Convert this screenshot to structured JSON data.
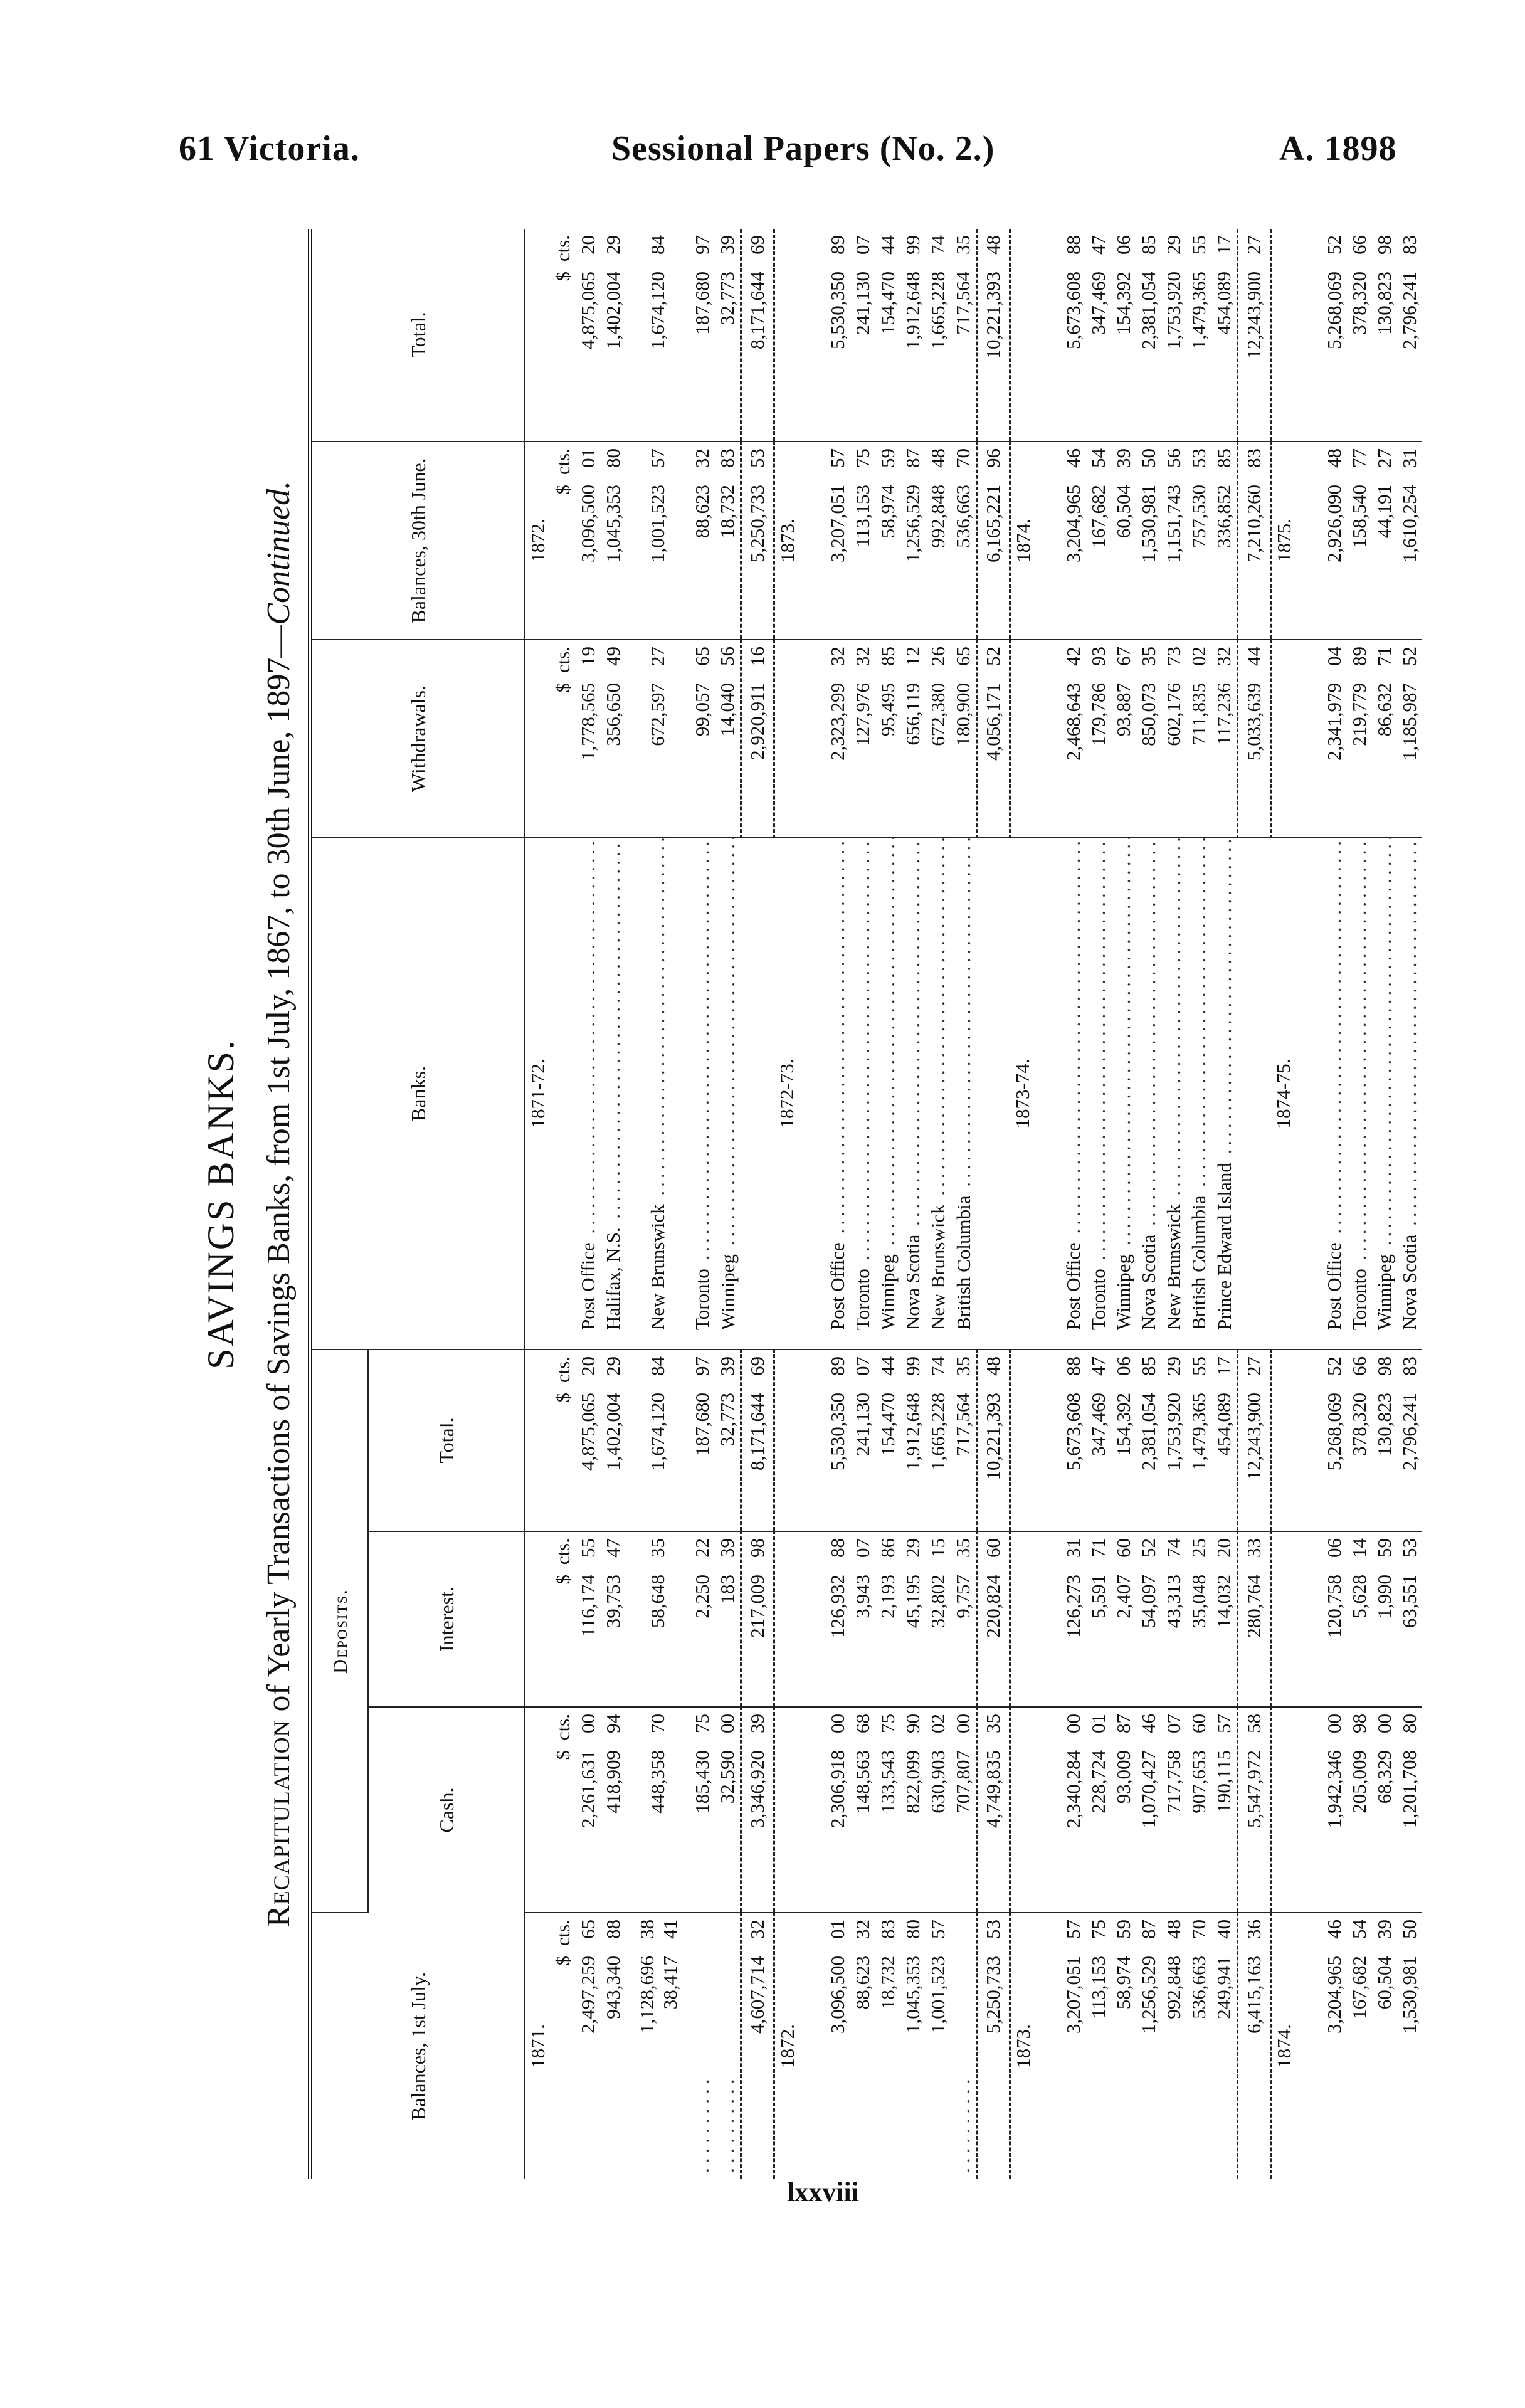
{
  "header": {
    "left": "61 Victoria.",
    "center": "Sessional Papers (No. 2.)",
    "right": "A. 1898"
  },
  "page_number": "lxxviii",
  "title": "SAVINGS BANKS.",
  "subtitle": {
    "lead": "Recapitulation",
    "rest": " of Yearly Transactions of Savings Banks, from 1st July, 1867, to 30th June, 1897—",
    "continued": "Continued."
  },
  "columns": {
    "balance_1st_july": "Balances, 1st July.",
    "deposits": "Deposits.",
    "cash": "Cash.",
    "interest": "Interest.",
    "deposits_total": "Total.",
    "banks": "Banks.",
    "withdrawals": "Withdrawals.",
    "balance_30th_june": "Balances, 30th June.",
    "total": "Total."
  },
  "units": {
    "dollars": "$",
    "cents": "cts."
  },
  "periods": [
    {
      "period": "1871-72.",
      "year_start": "1871.",
      "year_end": "1872.",
      "show_units": true,
      "rows": [
        {
          "bank": "Post Office",
          "balance_1st_july": [
            "2,497,259 65"
          ],
          "cash": "2,261,631 00",
          "interest": "116,174 55",
          "deposits_total": "4,875,065 20",
          "withdrawals": "1,778,565 19",
          "balance_30th_june": "3,096,500 01",
          "total": "4,875,065 20"
        },
        {
          "bank": "Halifax, N.S.",
          "balance_1st_july": [
            "943,340 88"
          ],
          "cash": "418,909 94",
          "interest": "39,753 47",
          "deposits_total": "1,402,004 29",
          "withdrawals": "356,650 49",
          "balance_30th_june": "1,045,353 80",
          "total": "1,402,004 29"
        },
        {
          "bank": "New Brunswick",
          "balance_1st_july": [
            "1,128,696 38",
            "38,417 41"
          ],
          "cash": "448,358 70",
          "interest": "58,648 35",
          "deposits_total": "1,674,120 84",
          "withdrawals": "672,597 27",
          "balance_30th_june": "1,001,523 57",
          "total": "1,674,120 84"
        },
        {
          "bank": "Toronto",
          "balance_1st_july": [],
          "cash": "185,430 75",
          "interest": "2,250 22",
          "deposits_total": "187,680 97",
          "withdrawals": "99,057 65",
          "balance_30th_june": "88,623 32",
          "total": "187,680 97"
        },
        {
          "bank": "Winnipeg",
          "balance_1st_july": [],
          "cash": "32,590 00",
          "interest": "183 39",
          "deposits_total": "32,773 39",
          "withdrawals": "14,040 56",
          "balance_30th_june": "18,732 83",
          "total": "32,773 39"
        }
      ],
      "totals": {
        "balance_1st_july": "4,607,714 32",
        "cash": "3,346,920 39",
        "interest": "217,009 98",
        "deposits_total": "8,171,644 69",
        "withdrawals": "2,920,911 16",
        "balance_30th_june": "5,250,733 53",
        "total": "8,171,644 69"
      }
    },
    {
      "period": "1872-73.",
      "year_start": "1872.",
      "year_end": "1873.",
      "show_units": false,
      "rows": [
        {
          "bank": "Post Office",
          "balance_1st_july": [
            "3,096,500 01"
          ],
          "cash": "2,306,918 00",
          "interest": "126,932 88",
          "deposits_total": "5,530,350 89",
          "withdrawals": "2,323,299 32",
          "balance_30th_june": "3,207,051 57",
          "total": "5,530,350 89"
        },
        {
          "bank": "Toronto",
          "balance_1st_july": [
            "88,623 32"
          ],
          "cash": "148,563 68",
          "interest": "3,943 07",
          "deposits_total": "241,130 07",
          "withdrawals": "127,976 32",
          "balance_30th_june": "113,153 75",
          "total": "241,130 07"
        },
        {
          "bank": "Winnipeg",
          "balance_1st_july": [
            "18,732 83"
          ],
          "cash": "133,543 75",
          "interest": "2,193 86",
          "deposits_total": "154,470 44",
          "withdrawals": "95,495 85",
          "balance_30th_june": "58,974 59",
          "total": "154,470 44"
        },
        {
          "bank": "Nova Scotia",
          "balance_1st_july": [
            "1,045,353 80"
          ],
          "cash": "822,099 90",
          "interest": "45,195 29",
          "deposits_total": "1,912,648 99",
          "withdrawals": "656,119 12",
          "balance_30th_june": "1,256,529 87",
          "total": "1,912,648 99"
        },
        {
          "bank": "New Brunswick",
          "balance_1st_july": [
            "1,001,523 57"
          ],
          "cash": "630,903 02",
          "interest": "32,802 15",
          "deposits_total": "1,665,228 74",
          "withdrawals": "672,380 26",
          "balance_30th_june": "992,848 48",
          "total": "1,665,228 74"
        },
        {
          "bank": "British Columbia",
          "balance_1st_july": [],
          "cash": "707,807 00",
          "interest": "9,757 35",
          "deposits_total": "717,564 35",
          "withdrawals": "180,900 65",
          "balance_30th_june": "536,663 70",
          "total": "717,564 35"
        }
      ],
      "totals": {
        "balance_1st_july": "5,250,733 53",
        "cash": "4,749,835 35",
        "interest": "220,824 60",
        "deposits_total": "10,221,393 48",
        "withdrawals": "4,056,171 52",
        "balance_30th_june": "6,165,221 96",
        "total": "10,221,393 48"
      }
    },
    {
      "period": "1873-74.",
      "year_start": "1873.",
      "year_end": "1874.",
      "show_units": false,
      "rows": [
        {
          "bank": "Post Office",
          "balance_1st_july": [
            "3,207,051 57"
          ],
          "cash": "2,340,284 00",
          "interest": "126,273 31",
          "deposits_total": "5,673,608 88",
          "withdrawals": "2,468,643 42",
          "balance_30th_june": "3,204,965 46",
          "total": "5,673,608 88"
        },
        {
          "bank": "Toronto",
          "balance_1st_july": [
            "113,153 75"
          ],
          "cash": "228,724 01",
          "interest": "5,591 71",
          "deposits_total": "347,469 47",
          "withdrawals": "179,786 93",
          "balance_30th_june": "167,682 54",
          "total": "347,469 47"
        },
        {
          "bank": "Winnipeg",
          "balance_1st_july": [
            "58,974 59"
          ],
          "cash": "93,009 87",
          "interest": "2,407 60",
          "deposits_total": "154,392 06",
          "withdrawals": "93,887 67",
          "balance_30th_june": "60,504 39",
          "total": "154,392 06"
        },
        {
          "bank": "Nova Scotia",
          "balance_1st_july": [
            "1,256,529 87"
          ],
          "cash": "1,070,427 46",
          "interest": "54,097 52",
          "deposits_total": "2,381,054 85",
          "withdrawals": "850,073 35",
          "balance_30th_june": "1,530,981 50",
          "total": "2,381,054 85"
        },
        {
          "bank": "New Brunswick",
          "balance_1st_july": [
            "992,848 48"
          ],
          "cash": "717,758 07",
          "interest": "43,313 74",
          "deposits_total": "1,753,920 29",
          "withdrawals": "602,176 73",
          "balance_30th_june": "1,151,743 56",
          "total": "1,753,920 29"
        },
        {
          "bank": "British Columbia",
          "balance_1st_july": [
            "536,663 70"
          ],
          "cash": "907,653 60",
          "interest": "35,048 25",
          "deposits_total": "1,479,365 55",
          "withdrawals": "711,835 02",
          "balance_30th_june": "757,530 53",
          "total": "1,479,365 55"
        },
        {
          "bank": "Prince Edward Island",
          "balance_1st_july": [
            "249,941 40"
          ],
          "cash": "190,115 57",
          "interest": "14,032 20",
          "deposits_total": "454,089 17",
          "withdrawals": "117,236 32",
          "balance_30th_june": "336,852 85",
          "total": "454,089 17"
        }
      ],
      "totals": {
        "balance_1st_july": "6,415,163 36",
        "cash": "5,547,972 58",
        "interest": "280,764 33",
        "deposits_total": "12,243,900 27",
        "withdrawals": "5,033,639 44",
        "balance_30th_june": "7,210,260 83",
        "total": "12,243,900 27"
      }
    },
    {
      "period": "1874-75.",
      "year_start": "1874.",
      "year_end": "1875.",
      "show_units": false,
      "rows": [
        {
          "bank": "Post Office",
          "balance_1st_july": [
            "3,204,965 46"
          ],
          "cash": "1,942,346 00",
          "interest": "120,758 06",
          "deposits_total": "5,268,069 52",
          "withdrawals": "2,341,979 04",
          "balance_30th_june": "2,926,090 48",
          "total": "5,268,069 52"
        },
        {
          "bank": "Toronto",
          "balance_1st_july": [
            "167,682 54"
          ],
          "cash": "205,009 98",
          "interest": "5,628 14",
          "deposits_total": "378,320 66",
          "withdrawals": "219,779 89",
          "balance_30th_june": "158,540 77",
          "total": "378,320 66"
        },
        {
          "bank": "Winnipeg",
          "balance_1st_july": [
            "60,504 39"
          ],
          "cash": "68,329 00",
          "interest": "1,990 59",
          "deposits_total": "130,823 98",
          "withdrawals": "86,632 71",
          "balance_30th_june": "44,191 27",
          "total": "130,823 98"
        },
        {
          "bank": "Nova Scotia",
          "balance_1st_july": [
            "1,530,981 50"
          ],
          "cash": "1,201,708 80",
          "interest": "63,551 53",
          "deposits_total": "2,796,241 83",
          "withdrawals": "1,185,987 52",
          "balance_30th_june": "1,610,254 31",
          "total": "2,796,241 83"
        }
      ],
      "totals": null
    }
  ]
}
